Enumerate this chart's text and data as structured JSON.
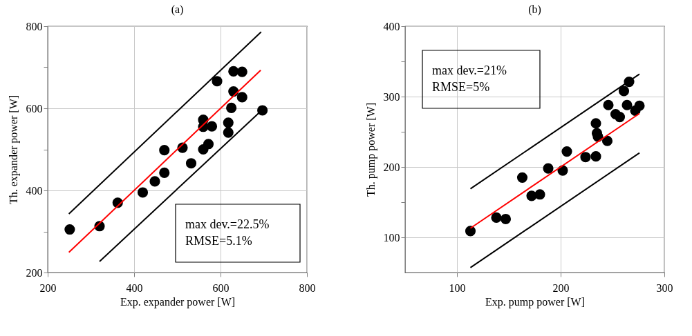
{
  "chart_data": [
    {
      "type": "scatter",
      "title": "(a)",
      "xlabel": "Exp. expander power [W]",
      "ylabel": "Th. expander power [W]",
      "xlim": [
        200,
        800
      ],
      "ylim": [
        200,
        800
      ],
      "xticks": [
        200,
        400,
        600,
        800
      ],
      "yticks": [
        200,
        {
          "value": 300,
          "label": null
        },
        400,
        {
          "value": 500,
          "label": null
        },
        600,
        {
          "value": 700,
          "label": null
        },
        800
      ],
      "grid": true,
      "legend": false,
      "marker": "circle",
      "annotations": [
        "max dev.=22.5%",
        "RMSE=5.1%"
      ],
      "series": [
        {
          "type": "scatter",
          "color": "#000000",
          "x": [
            251,
            320,
            362,
            420,
            448,
            470,
            470,
            512,
            532,
            560,
            560,
            560,
            572,
            580,
            592,
            618,
            618,
            625,
            630,
            630,
            650,
            650,
            697
          ],
          "values": [
            305,
            313,
            370,
            395,
            422,
            443,
            498,
            504,
            466,
            572,
            555,
            500,
            513,
            556,
            666,
            565,
            541,
            601,
            690,
            641,
            689,
            627,
            595
          ]
        },
        {
          "type": "line",
          "marker": "none",
          "color": "#000000",
          "x": [
            249,
            694
          ],
          "values": [
            343,
            786
          ]
        },
        {
          "type": "line",
          "marker": "none",
          "color": "#ff0000",
          "x": [
            249,
            693
          ],
          "values": [
            249,
            693
          ]
        },
        {
          "type": "line",
          "marker": "none",
          "color": "#000000",
          "x": [
            320,
            693
          ],
          "values": [
            227,
            593
          ]
        }
      ]
    },
    {
      "type": "scatter",
      "title": "(b)",
      "xlabel": "Exp. pump power [W]",
      "ylabel": "Th. pump power [W]",
      "xlim": [
        50,
        300
      ],
      "ylim": [
        50,
        400
      ],
      "xticks": [
        100,
        200,
        300
      ],
      "yticks": [
        100,
        {
          "value": 150,
          "label": null
        },
        200,
        {
          "value": 250,
          "label": null
        },
        300,
        {
          "value": 350,
          "label": null
        },
        400
      ],
      "grid": true,
      "legend": false,
      "marker": "circle",
      "annotations": [
        "max dev.=21%",
        "RMSE=5%"
      ],
      "series": [
        {
          "type": "scatter",
          "color": "#000000",
          "x": [
            113,
            138,
            147,
            163,
            172,
            180,
            188,
            202,
            206,
            224,
            234,
            234,
            235,
            236,
            245,
            246,
            253,
            257,
            261,
            266,
            264,
            272,
            276
          ],
          "values": [
            109,
            128,
            126,
            185,
            159,
            161,
            198,
            195,
            222,
            214,
            215,
            262,
            248,
            243,
            237,
            288,
            275,
            271,
            308,
            321,
            288,
            280,
            287
          ]
        },
        {
          "type": "line",
          "marker": "none",
          "color": "#000000",
          "x": [
            113,
            276
          ],
          "values": [
            169,
            332
          ]
        },
        {
          "type": "line",
          "marker": "none",
          "color": "#ff0000",
          "x": [
            113,
            276
          ],
          "values": [
            113,
            276
          ]
        },
        {
          "type": "line",
          "marker": "none",
          "color": "#000000",
          "x": [
            113,
            276
          ],
          "values": [
            57,
            220
          ]
        }
      ]
    }
  ]
}
